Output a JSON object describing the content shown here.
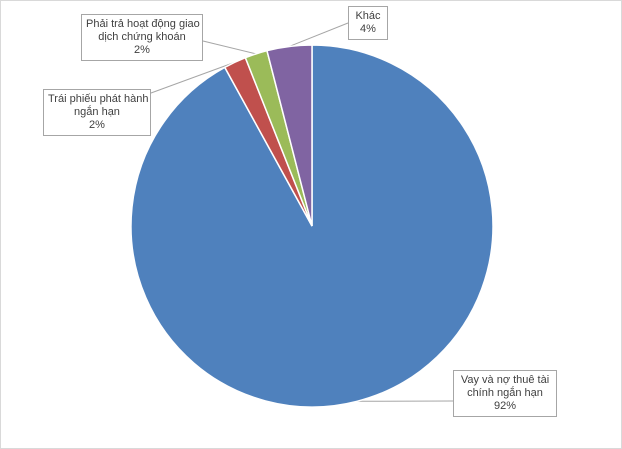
{
  "chart_data": {
    "type": "pie",
    "title": "",
    "slices": [
      {
        "label_lines": [
          "Vay và nợ thuê tài",
          "chính ngắn hạn"
        ],
        "value": 92,
        "value_label": "92%",
        "color": "#4f81bd"
      },
      {
        "label_lines": [
          "Trái phiếu phát hành",
          "ngắn hạn"
        ],
        "value": 2,
        "value_label": "2%",
        "color": "#c0504d"
      },
      {
        "label_lines": [
          "Phải trả hoạt động giao",
          "dịch chứng khoán"
        ],
        "value": 2,
        "value_label": "2%",
        "color": "#9bbb59"
      },
      {
        "label_lines": [
          "Khác"
        ],
        "value": 4,
        "value_label": "4%",
        "color": "#8064a2"
      }
    ],
    "start_angle_deg": 0,
    "direction": "clockwise",
    "legend": "none",
    "data_labels": "callouts"
  }
}
